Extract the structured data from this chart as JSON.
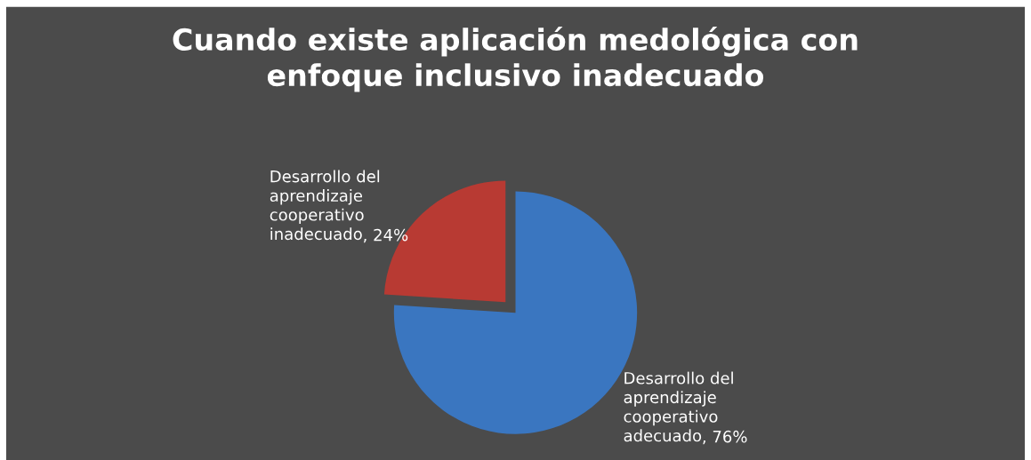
{
  "chart_data": {
    "type": "pie",
    "title": "Cuando existe aplicación medológica con\nenfoque inclusivo inadecuado",
    "categories": [
      "Desarrollo del\naprendizaje\ncooperativo\nadecuado",
      "Desarrollo del\naprendizaje\ncooperativo\ninadecuado"
    ],
    "values": [
      76,
      24
    ],
    "value_labels": [
      ", 76%",
      ", 24%"
    ],
    "colors": [
      "#3a76c0",
      "#b83a33"
    ],
    "legend": false
  }
}
